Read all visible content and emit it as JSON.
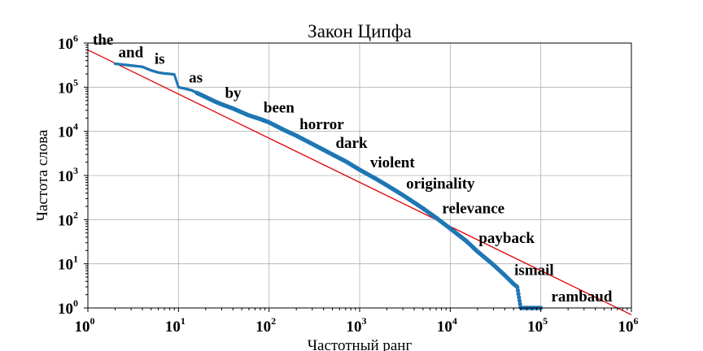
{
  "chart_data": {
    "type": "scatter",
    "title": "Закон Ципфа",
    "xlabel": "Частотный ранг",
    "ylabel": "Частота слова",
    "xscale": "log",
    "yscale": "log",
    "xlim": [
      1,
      1000000
    ],
    "ylim": [
      1,
      1000000
    ],
    "grid": true,
    "x_ticks": [
      {
        "base": "10",
        "exp": "0"
      },
      {
        "base": "10",
        "exp": "1"
      },
      {
        "base": "10",
        "exp": "2"
      },
      {
        "base": "10",
        "exp": "3"
      },
      {
        "base": "10",
        "exp": "4"
      },
      {
        "base": "10",
        "exp": "5"
      },
      {
        "base": "10",
        "exp": "6"
      }
    ],
    "y_ticks": [
      {
        "base": "10",
        "exp": "0"
      },
      {
        "base": "10",
        "exp": "1"
      },
      {
        "base": "10",
        "exp": "2"
      },
      {
        "base": "10",
        "exp": "3"
      },
      {
        "base": "10",
        "exp": "4"
      },
      {
        "base": "10",
        "exp": "5"
      },
      {
        "base": "10",
        "exp": "6"
      }
    ],
    "series": [
      {
        "kind": "word-frequency",
        "color": "#1f77b4",
        "x": [
          2,
          3,
          4,
          5,
          6,
          7,
          8,
          9,
          10,
          12,
          14,
          17,
          20,
          25,
          30,
          40,
          50,
          60,
          80,
          100,
          150,
          200,
          300,
          500,
          700,
          1000,
          1500,
          2000,
          3000,
          5000,
          7000,
          10000,
          15000,
          20000,
          30000,
          40000,
          50000,
          55000,
          60000,
          100000
        ],
        "y": [
          340000,
          310000,
          290000,
          240000,
          215000,
          205000,
          200000,
          195000,
          100000,
          92000,
          85000,
          70000,
          60000,
          48000,
          41000,
          33000,
          27000,
          23000,
          19000,
          16000,
          10500,
          8000,
          5200,
          3000,
          2100,
          1350,
          850,
          600,
          360,
          180,
          110,
          63,
          33,
          19,
          9.5,
          5.5,
          3.5,
          3,
          1,
          1
        ]
      },
      {
        "kind": "zipf-fit",
        "color": "#e00000",
        "x": [
          1,
          1000000
        ],
        "y": [
          700000,
          0.7
        ]
      }
    ],
    "annotations": [
      {
        "text": "the",
        "rank": 1
      },
      {
        "text": "and",
        "rank": 2
      },
      {
        "text": "is",
        "rank": 5
      },
      {
        "text": "as",
        "rank": 12
      },
      {
        "text": "by",
        "rank": 30
      },
      {
        "text": "been",
        "rank": 80
      },
      {
        "text": "horror",
        "rank": 200
      },
      {
        "text": "dark",
        "rank": 500
      },
      {
        "text": "violent",
        "rank": 1200
      },
      {
        "text": "originality",
        "rank": 3000
      },
      {
        "text": "relevance",
        "rank": 7500
      },
      {
        "text": "payback",
        "rank": 19000
      },
      {
        "text": "ismail",
        "rank": 47000
      },
      {
        "text": "rambaud",
        "rank": 120000
      }
    ]
  }
}
